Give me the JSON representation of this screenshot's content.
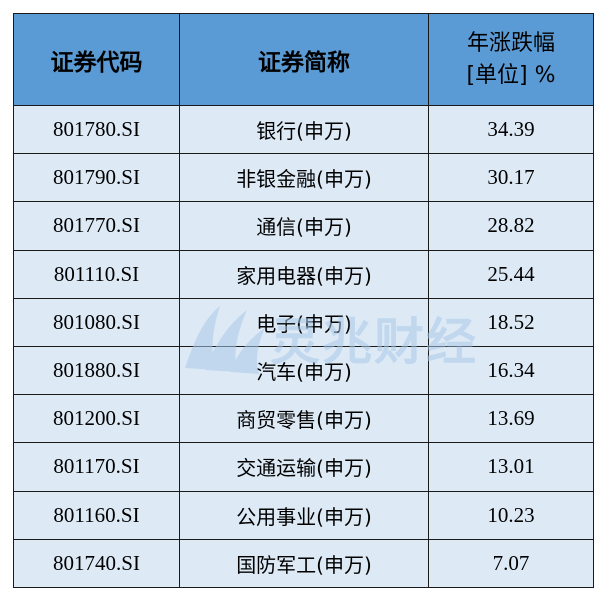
{
  "table": {
    "headers": {
      "code": "证券代码",
      "name": "证券简称",
      "change_line1": "年涨跌幅",
      "change_line2": "[单位] %"
    },
    "rows": [
      {
        "code": "801780.SI",
        "name": "银行(申万)",
        "change": "34.39"
      },
      {
        "code": "801790.SI",
        "name": "非银金融(申万)",
        "change": "30.17"
      },
      {
        "code": "801770.SI",
        "name": "通信(申万)",
        "change": "28.82"
      },
      {
        "code": "801110.SI",
        "name": "家用电器(申万)",
        "change": "25.44"
      },
      {
        "code": "801080.SI",
        "name": "电子(申万)",
        "change": "18.52"
      },
      {
        "code": "801880.SI",
        "name": "汽车(申万)",
        "change": "16.34"
      },
      {
        "code": "801200.SI",
        "name": "商贸零售(申万)",
        "change": "13.69"
      },
      {
        "code": "801170.SI",
        "name": "交通运输(申万)",
        "change": "13.01"
      },
      {
        "code": "801160.SI",
        "name": "公用事业(申万)",
        "change": "10.23"
      },
      {
        "code": "801740.SI",
        "name": "国防军工(申万)",
        "change": "7.07"
      }
    ]
  },
  "watermark": {
    "text": "灵兆财经",
    "icon": "wave-logo-icon",
    "color": "#a9c8e6"
  },
  "colors": {
    "header_bg": "#5b9bd5",
    "row_bg": "#ddeaf6",
    "border": "#1a1a1a"
  }
}
